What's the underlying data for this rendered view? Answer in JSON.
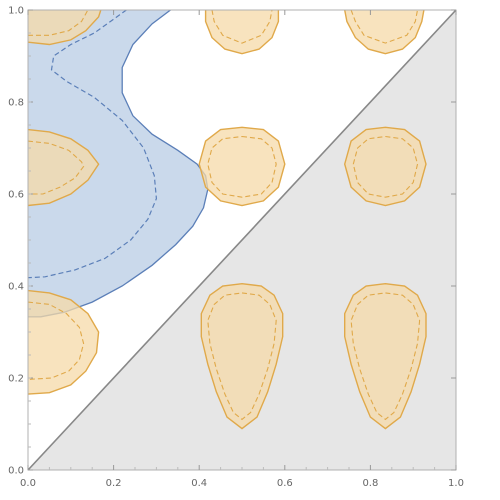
{
  "chart_data": {
    "type": "area",
    "title": "",
    "xlabel": "",
    "ylabel": "",
    "xlim": [
      0,
      1
    ],
    "ylim": [
      0,
      1
    ],
    "grid": false,
    "frame": true,
    "x_ticks": [
      {
        "value": 0.0,
        "label": "0.0"
      },
      {
        "value": 0.2,
        "label": "0.2"
      },
      {
        "value": 0.4,
        "label": "0.4"
      },
      {
        "value": 0.6,
        "label": "0.6"
      },
      {
        "value": 0.8,
        "label": "0.8"
      },
      {
        "value": 1.0,
        "label": "1.0"
      }
    ],
    "y_ticks": [
      {
        "value": 0.0,
        "label": "0.0"
      },
      {
        "value": 0.2,
        "label": "0.2"
      },
      {
        "value": 0.4,
        "label": "0.4"
      },
      {
        "value": 0.6,
        "label": "0.6"
      },
      {
        "value": 0.8,
        "label": "0.8"
      },
      {
        "value": 1.0,
        "label": "1.0"
      }
    ],
    "diagonal_line": {
      "from": [
        0,
        0
      ],
      "to": [
        1,
        1
      ],
      "color": "#888888"
    },
    "shaded_region": {
      "color": "#e6e6e6",
      "points": [
        [
          0,
          0
        ],
        [
          1,
          0
        ],
        [
          1,
          1
        ]
      ]
    },
    "blue_region": {
      "fill": "#b8cce4",
      "stroke": "#5b7fb8",
      "outer": [
        [
          0.0,
          1.0
        ],
        [
          0.333,
          1.0
        ],
        [
          0.29,
          0.97
        ],
        [
          0.245,
          0.925
        ],
        [
          0.22,
          0.875
        ],
        [
          0.22,
          0.82
        ],
        [
          0.245,
          0.77
        ],
        [
          0.29,
          0.73
        ],
        [
          0.35,
          0.695
        ],
        [
          0.395,
          0.665
        ],
        [
          0.415,
          0.64
        ],
        [
          0.42,
          0.61
        ],
        [
          0.41,
          0.57
        ],
        [
          0.385,
          0.53
        ],
        [
          0.345,
          0.49
        ],
        [
          0.29,
          0.445
        ],
        [
          0.22,
          0.4
        ],
        [
          0.15,
          0.365
        ],
        [
          0.085,
          0.343
        ],
        [
          0.03,
          0.333
        ],
        [
          0.0,
          0.333
        ]
      ],
      "inner_dashed": [
        [
          0.23,
          1.0
        ],
        [
          0.2,
          0.98
        ],
        [
          0.155,
          0.95
        ],
        [
          0.1,
          0.925
        ],
        [
          0.06,
          0.9
        ],
        [
          0.055,
          0.87
        ],
        [
          0.09,
          0.845
        ],
        [
          0.155,
          0.81
        ],
        [
          0.22,
          0.76
        ],
        [
          0.27,
          0.7
        ],
        [
          0.295,
          0.64
        ],
        [
          0.3,
          0.59
        ],
        [
          0.28,
          0.545
        ],
        [
          0.24,
          0.5
        ],
        [
          0.18,
          0.46
        ],
        [
          0.11,
          0.435
        ],
        [
          0.04,
          0.42
        ],
        [
          0.0,
          0.418
        ]
      ]
    },
    "orange_blobs": {
      "fill": "#f5d9a8",
      "stroke": "#e0a94a",
      "items": [
        {
          "outer": [
            [
              0.0,
              0.93
            ],
            [
              0.05,
              0.925
            ],
            [
              0.1,
              0.935
            ],
            [
              0.135,
              0.955
            ],
            [
              0.165,
              0.985
            ],
            [
              0.17,
              1.0
            ],
            [
              0.0,
              1.0
            ]
          ],
          "inner": [
            [
              0.0,
              0.945
            ],
            [
              0.05,
              0.945
            ],
            [
              0.095,
              0.955
            ],
            [
              0.125,
              0.975
            ],
            [
              0.14,
              1.0
            ]
          ]
        },
        {
          "outer": [
            [
              0.415,
              1.0
            ],
            [
              0.415,
              0.975
            ],
            [
              0.43,
              0.94
            ],
            [
              0.46,
              0.915
            ],
            [
              0.5,
              0.905
            ],
            [
              0.54,
              0.915
            ],
            [
              0.57,
              0.94
            ],
            [
              0.585,
              0.975
            ],
            [
              0.585,
              1.0
            ]
          ],
          "inner": [
            [
              0.43,
              1.0
            ],
            [
              0.435,
              0.975
            ],
            [
              0.455,
              0.945
            ],
            [
              0.5,
              0.928
            ],
            [
              0.545,
              0.945
            ],
            [
              0.565,
              0.975
            ],
            [
              0.57,
              1.0
            ]
          ]
        },
        {
          "outer": [
            [
              0.74,
              1.0
            ],
            [
              0.745,
              0.975
            ],
            [
              0.765,
              0.94
            ],
            [
              0.795,
              0.915
            ],
            [
              0.835,
              0.905
            ],
            [
              0.875,
              0.915
            ],
            [
              0.905,
              0.94
            ],
            [
              0.92,
              0.975
            ],
            [
              0.925,
              1.0
            ]
          ],
          "inner": [
            [
              0.755,
              1.0
            ],
            [
              0.765,
              0.975
            ],
            [
              0.785,
              0.945
            ],
            [
              0.835,
              0.928
            ],
            [
              0.885,
              0.945
            ],
            [
              0.905,
              0.975
            ],
            [
              0.91,
              1.0
            ]
          ]
        },
        {
          "outer": [
            [
              0.0,
              0.74
            ],
            [
              0.05,
              0.735
            ],
            [
              0.1,
              0.72
            ],
            [
              0.14,
              0.695
            ],
            [
              0.165,
              0.665
            ],
            [
              0.14,
              0.63
            ],
            [
              0.1,
              0.6
            ],
            [
              0.05,
              0.58
            ],
            [
              0.0,
              0.575
            ]
          ],
          "inner": [
            [
              0.0,
              0.715
            ],
            [
              0.05,
              0.71
            ],
            [
              0.095,
              0.695
            ],
            [
              0.125,
              0.67
            ],
            [
              0.13,
              0.66
            ],
            [
              0.11,
              0.635
            ],
            [
              0.075,
              0.615
            ],
            [
              0.035,
              0.6
            ],
            [
              0.0,
              0.6
            ]
          ]
        },
        {
          "outer": [
            [
              0.5,
              0.745
            ],
            [
              0.55,
              0.74
            ],
            [
              0.585,
              0.715
            ],
            [
              0.6,
              0.665
            ],
            [
              0.585,
              0.615
            ],
            [
              0.55,
              0.585
            ],
            [
              0.5,
              0.575
            ],
            [
              0.45,
              0.585
            ],
            [
              0.415,
              0.615
            ],
            [
              0.4,
              0.665
            ],
            [
              0.415,
              0.715
            ],
            [
              0.45,
              0.74
            ]
          ],
          "inner": [
            [
              0.5,
              0.725
            ],
            [
              0.545,
              0.72
            ],
            [
              0.57,
              0.7
            ],
            [
              0.58,
              0.665
            ],
            [
              0.57,
              0.625
            ],
            [
              0.545,
              0.6
            ],
            [
              0.5,
              0.593
            ],
            [
              0.455,
              0.6
            ],
            [
              0.43,
              0.625
            ],
            [
              0.42,
              0.665
            ],
            [
              0.43,
              0.7
            ],
            [
              0.455,
              0.72
            ]
          ]
        },
        {
          "outer": [
            [
              0.835,
              0.745
            ],
            [
              0.88,
              0.74
            ],
            [
              0.915,
              0.715
            ],
            [
              0.93,
              0.665
            ],
            [
              0.915,
              0.615
            ],
            [
              0.88,
              0.585
            ],
            [
              0.835,
              0.575
            ],
            [
              0.79,
              0.585
            ],
            [
              0.755,
              0.615
            ],
            [
              0.74,
              0.665
            ],
            [
              0.755,
              0.715
            ],
            [
              0.79,
              0.74
            ]
          ],
          "inner": [
            [
              0.835,
              0.725
            ],
            [
              0.875,
              0.72
            ],
            [
              0.9,
              0.7
            ],
            [
              0.91,
              0.665
            ],
            [
              0.9,
              0.625
            ],
            [
              0.875,
              0.6
            ],
            [
              0.835,
              0.593
            ],
            [
              0.795,
              0.6
            ],
            [
              0.77,
              0.625
            ],
            [
              0.76,
              0.665
            ],
            [
              0.77,
              0.7
            ],
            [
              0.795,
              0.72
            ]
          ]
        },
        {
          "outer": [
            [
              0.0,
              0.39
            ],
            [
              0.05,
              0.385
            ],
            [
              0.1,
              0.37
            ],
            [
              0.14,
              0.34
            ],
            [
              0.165,
              0.3
            ],
            [
              0.16,
              0.255
            ],
            [
              0.135,
              0.215
            ],
            [
              0.1,
              0.185
            ],
            [
              0.05,
              0.168
            ],
            [
              0.0,
              0.165
            ]
          ],
          "inner": [
            [
              0.0,
              0.365
            ],
            [
              0.05,
              0.36
            ],
            [
              0.09,
              0.34
            ],
            [
              0.12,
              0.31
            ],
            [
              0.13,
              0.275
            ],
            [
              0.12,
              0.24
            ],
            [
              0.095,
              0.215
            ],
            [
              0.055,
              0.2
            ],
            [
              0.0,
              0.197
            ]
          ]
        },
        {
          "outer": [
            [
              0.5,
              0.405
            ],
            [
              0.545,
              0.4
            ],
            [
              0.575,
              0.38
            ],
            [
              0.595,
              0.34
            ],
            [
              0.595,
              0.29
            ],
            [
              0.58,
              0.23
            ],
            [
              0.56,
              0.17
            ],
            [
              0.535,
              0.115
            ],
            [
              0.5,
              0.09
            ],
            [
              0.465,
              0.115
            ],
            [
              0.44,
              0.17
            ],
            [
              0.42,
              0.23
            ],
            [
              0.405,
              0.29
            ],
            [
              0.405,
              0.34
            ],
            [
              0.425,
              0.38
            ],
            [
              0.455,
              0.4
            ]
          ],
          "inner": [
            [
              0.5,
              0.385
            ],
            [
              0.54,
              0.38
            ],
            [
              0.565,
              0.36
            ],
            [
              0.58,
              0.325
            ],
            [
              0.575,
              0.275
            ],
            [
              0.56,
              0.22
            ],
            [
              0.54,
              0.165
            ],
            [
              0.52,
              0.125
            ],
            [
              0.5,
              0.11
            ],
            [
              0.48,
              0.125
            ],
            [
              0.46,
              0.165
            ],
            [
              0.44,
              0.22
            ],
            [
              0.425,
              0.275
            ],
            [
              0.42,
              0.325
            ],
            [
              0.435,
              0.36
            ],
            [
              0.46,
              0.38
            ]
          ]
        },
        {
          "outer": [
            [
              0.835,
              0.405
            ],
            [
              0.88,
              0.4
            ],
            [
              0.91,
              0.38
            ],
            [
              0.93,
              0.34
            ],
            [
              0.93,
              0.29
            ],
            [
              0.915,
              0.23
            ],
            [
              0.895,
              0.17
            ],
            [
              0.87,
              0.115
            ],
            [
              0.835,
              0.09
            ],
            [
              0.8,
              0.115
            ],
            [
              0.775,
              0.17
            ],
            [
              0.755,
              0.23
            ],
            [
              0.74,
              0.29
            ],
            [
              0.74,
              0.34
            ],
            [
              0.76,
              0.38
            ],
            [
              0.79,
              0.4
            ]
          ],
          "inner": [
            [
              0.835,
              0.385
            ],
            [
              0.875,
              0.38
            ],
            [
              0.9,
              0.36
            ],
            [
              0.915,
              0.325
            ],
            [
              0.91,
              0.275
            ],
            [
              0.895,
              0.22
            ],
            [
              0.875,
              0.165
            ],
            [
              0.855,
              0.125
            ],
            [
              0.835,
              0.11
            ],
            [
              0.815,
              0.125
            ],
            [
              0.795,
              0.165
            ],
            [
              0.775,
              0.22
            ],
            [
              0.76,
              0.275
            ],
            [
              0.755,
              0.325
            ],
            [
              0.77,
              0.36
            ],
            [
              0.795,
              0.38
            ]
          ]
        }
      ]
    }
  }
}
